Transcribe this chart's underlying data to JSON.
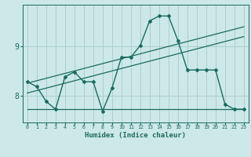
{
  "xlabel": "Humidex (Indice chaleur)",
  "bg_color": "#cde8e8",
  "grid_color": "#aacfcf",
  "line_color": "#1a6b60",
  "x_data": [
    0,
    1,
    2,
    3,
    4,
    5,
    6,
    7,
    8,
    9,
    10,
    11,
    12,
    13,
    14,
    15,
    16,
    17,
    18,
    19,
    20,
    21,
    22,
    23
  ],
  "y_main": [
    8.28,
    8.18,
    7.88,
    7.72,
    8.38,
    8.48,
    8.28,
    8.28,
    7.68,
    8.15,
    8.78,
    8.78,
    9.02,
    9.52,
    9.62,
    9.62,
    9.12,
    8.52,
    8.52,
    8.52,
    8.52,
    7.82,
    7.72,
    7.72
  ],
  "y_ref_upper": [
    8.25,
    8.3,
    8.35,
    8.4,
    8.45,
    8.5,
    8.55,
    8.6,
    8.65,
    8.7,
    8.75,
    8.8,
    8.85,
    8.9,
    8.95,
    9.0,
    9.05,
    9.1,
    9.15,
    9.2,
    9.25,
    9.3,
    9.35,
    9.4
  ],
  "y_ref_lower": [
    8.05,
    8.1,
    8.15,
    8.2,
    8.25,
    8.3,
    8.35,
    8.4,
    8.45,
    8.5,
    8.55,
    8.6,
    8.65,
    8.7,
    8.75,
    8.8,
    8.85,
    8.9,
    8.95,
    9.0,
    9.05,
    9.1,
    9.15,
    9.2
  ],
  "y_flat": [
    7.72,
    7.72,
    7.72,
    7.72,
    7.72,
    7.72,
    7.72,
    7.72,
    7.72,
    7.72,
    7.72,
    7.72,
    7.72,
    7.72,
    7.72,
    7.72,
    7.72,
    7.72,
    7.72,
    7.72,
    7.72,
    7.72,
    7.72,
    7.72
  ],
  "ylim": [
    7.45,
    9.85
  ],
  "yticks": [
    8.0,
    9.0
  ],
  "xlim": [
    -0.5,
    23.5
  ]
}
